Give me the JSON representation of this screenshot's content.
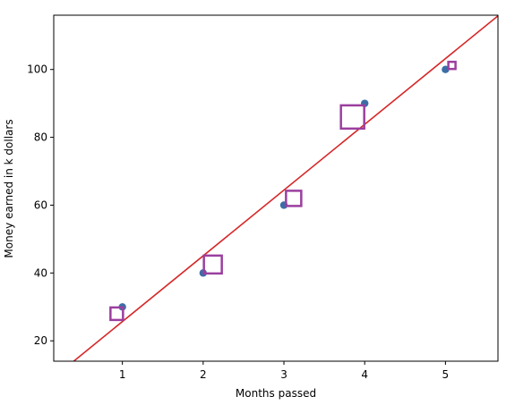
{
  "chart_data": {
    "type": "scatter",
    "title": "",
    "xlabel": "Months passed",
    "ylabel": "Money earned in k dollars",
    "xlim": [
      0.15,
      5.65
    ],
    "ylim": [
      14,
      116
    ],
    "x_ticks": [
      1,
      2,
      3,
      4,
      5
    ],
    "y_ticks": [
      20,
      40,
      60,
      80,
      100
    ],
    "grid": false,
    "legend": "none",
    "series": [
      {
        "kind": "points",
        "color": "#3b6ea5",
        "x": [
          1,
          2,
          3,
          4,
          5
        ],
        "y": [
          30,
          40,
          60,
          90,
          100
        ]
      },
      {
        "kind": "line",
        "color": "#d62728",
        "x": [
          0.15,
          5.65
        ],
        "y": [
          9.2,
          115.8
        ]
      },
      {
        "kind": "square-markers",
        "color": "#9b3f9f",
        "x": [
          0.93,
          2.12,
          3.12,
          3.85,
          5.08
        ],
        "y": [
          28,
          42.5,
          62,
          86,
          101.2
        ],
        "marker_size": [
          14,
          20,
          17,
          26,
          8
        ]
      }
    ]
  }
}
